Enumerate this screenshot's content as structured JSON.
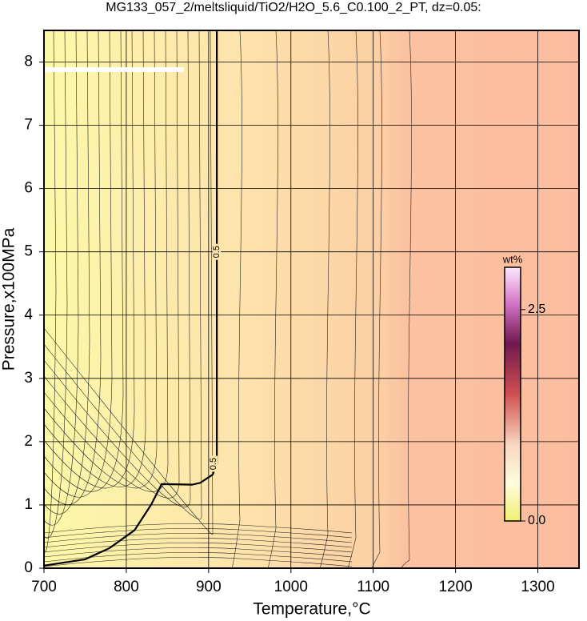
{
  "chart_data": {
    "type": "contour",
    "title": "MG133_057_2/meltsliquid/TiO2/H2O_5.6_C0.100_2_PT, dz=0.05:",
    "x_label": "Temperature,°C",
    "y_label": "Pressure,x100MPa",
    "xlim": [
      700,
      1350
    ],
    "ylim": [
      0,
      8.5
    ],
    "xticks": [
      700,
      800,
      900,
      1000,
      1100,
      1200,
      1300
    ],
    "yticks": [
      0,
      1,
      2,
      3,
      4,
      5,
      6,
      7,
      8
    ],
    "grid": true,
    "contours": [
      {
        "level": 0.5,
        "color": "#000000",
        "x": [
          700,
          750,
          780,
          810,
          830,
          843,
          880,
          890,
          905,
          910,
          910,
          910
        ],
        "y": [
          0.04,
          0.14,
          0.32,
          0.6,
          1.0,
          1.33,
          1.32,
          1.35,
          1.48,
          1.65,
          5,
          8.5
        ]
      }
    ],
    "colorbar": {
      "label": "wt%",
      "clim": [
        0,
        3.0
      ],
      "ticks": [
        {
          "value": 0,
          "label": "0.0"
        },
        2.5
      ]
    }
  }
}
